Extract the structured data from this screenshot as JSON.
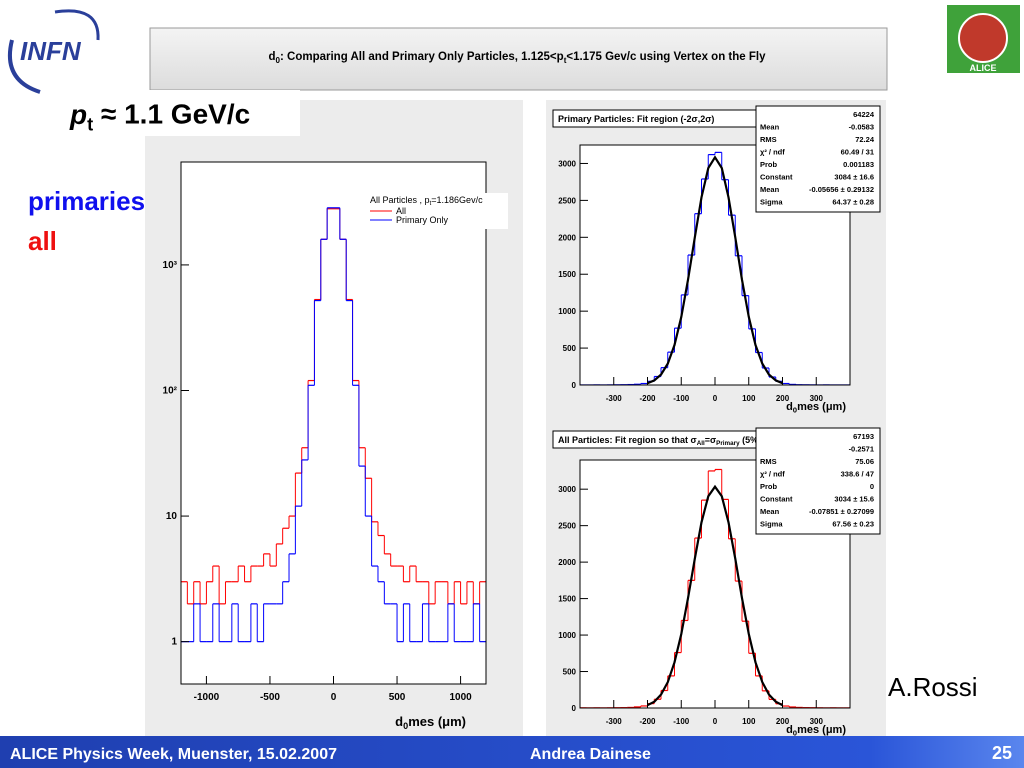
{
  "header": {
    "title": [
      "d",
      "0",
      ": Comparing All and Primary Only Particles, 1.125<p",
      "t",
      "<1.175 Gev/c using Vertex on the Fly"
    ]
  },
  "logos": {
    "left": "INFN",
    "right": "ALICE"
  },
  "labels": {
    "pt": [
      "p",
      "t",
      " ≈ 1.1 GeV/c"
    ],
    "primaries": "primaries",
    "all": "all",
    "author": "A.Rossi"
  },
  "footer": {
    "event": "ALICE Physics Week, Muenster, 15.02.2007",
    "speaker": "Andrea Dainese",
    "page": "25"
  },
  "chart_data": [
    {
      "type": "histogram",
      "log": true,
      "legend_title": [
        "All Particles , p",
        "t",
        "=1.186Gev/c"
      ],
      "xlabel": [
        "d",
        "0",
        "mes (μm)"
      ],
      "xlim": [
        -1200,
        1200
      ],
      "xticks": [
        -1000,
        -500,
        0,
        500,
        1000
      ],
      "ylim": [
        0.46,
        6600
      ],
      "yticks": [
        1,
        10,
        {
          "value": 100,
          "label": "10²"
        },
        {
          "value": 1000,
          "label": "10³"
        }
      ],
      "bins": [
        -1200,
        -1150,
        -1100,
        -1050,
        -1000,
        -950,
        -900,
        -850,
        -800,
        -750,
        -700,
        -650,
        -600,
        -550,
        -500,
        -450,
        -400,
        -350,
        -300,
        -250,
        -200,
        -150,
        -100,
        -50,
        0,
        50,
        100,
        150,
        200,
        250,
        300,
        350,
        400,
        450,
        500,
        550,
        600,
        650,
        700,
        750,
        800,
        850,
        900,
        950,
        1000,
        1050,
        1100,
        1150,
        1200
      ],
      "series": [
        {
          "name": "All",
          "color": "#ff0000",
          "values": [
            3,
            2,
            3,
            2,
            3,
            4,
            2,
            3,
            3,
            4,
            3,
            4,
            4,
            5,
            4,
            6,
            8,
            10,
            22,
            35,
            120,
            530,
            1600,
            2800,
            2800,
            1600,
            530,
            120,
            35,
            20,
            9,
            7,
            5,
            4,
            4,
            3,
            4,
            3,
            3,
            2,
            3,
            3,
            2,
            3,
            2,
            3,
            2,
            3
          ]
        },
        {
          "name": "Primary Only",
          "color": "#0000ff",
          "values": [
            1,
            1,
            2,
            1,
            1,
            2,
            1,
            1,
            2,
            1,
            1,
            2,
            1,
            2,
            2,
            2,
            3,
            5,
            12,
            28,
            110,
            520,
            1600,
            2850,
            2850,
            1600,
            520,
            110,
            25,
            10,
            4,
            3,
            2,
            2,
            1,
            2,
            1,
            1,
            2,
            1,
            1,
            1,
            2,
            1,
            1,
            1,
            2,
            1
          ]
        }
      ]
    },
    {
      "type": "histogram",
      "log": false,
      "title": [
        "Primary Particles: Fit region (-2σ,2σ)"
      ],
      "xlabel": [
        "d",
        "0",
        "mes (μm)"
      ],
      "stats": [
        {
          "value": "64224"
        },
        {
          "label": "Mean",
          "value": "-0.0583"
        },
        {
          "label": "RMS",
          "value": "72.24"
        },
        {
          "label": "χ² / ndf",
          "value": "60.49 / 31"
        },
        {
          "label": "Prob",
          "value": "0.001183"
        },
        {
          "label": "Constant",
          "value": "3084 ± 16.6"
        },
        {
          "label": "Mean",
          "value": "-0.05656 ± 0.29132"
        },
        {
          "label": "Sigma",
          "value": "64.37 ± 0.28"
        }
      ],
      "xlim": [
        -400,
        400
      ],
      "xticks": [
        -300,
        -200,
        -100,
        0,
        100,
        200,
        300
      ],
      "ylim": [
        0,
        3250
      ],
      "yticks": [
        0,
        500,
        1000,
        1500,
        2000,
        2500,
        3000
      ],
      "bins": [
        -400,
        -380,
        -360,
        -340,
        -320,
        -300,
        -280,
        -260,
        -240,
        -220,
        -200,
        -180,
        -160,
        -140,
        -120,
        -100,
        -80,
        -60,
        -40,
        -20,
        0,
        20,
        40,
        60,
        80,
        100,
        120,
        140,
        160,
        180,
        200,
        220,
        240,
        260,
        280,
        300,
        320,
        340,
        360,
        380,
        400
      ],
      "series": [
        {
          "color": "#0000ff",
          "values": [
            1,
            1,
            2,
            1,
            2,
            3,
            4,
            6,
            10,
            20,
            50,
            115,
            235,
            445,
            770,
            1220,
            1760,
            2320,
            2790,
            3120,
            3150,
            2780,
            2300,
            1750,
            1210,
            760,
            440,
            230,
            108,
            50,
            20,
            8,
            4,
            3,
            2,
            1,
            2,
            1,
            1,
            1
          ]
        }
      ],
      "fit": {
        "color": "#000000",
        "x": [
          -200,
          -180,
          -160,
          -140,
          -120,
          -100,
          -80,
          -60,
          -40,
          -20,
          0,
          20,
          40,
          60,
          80,
          100,
          120,
          140,
          160,
          180,
          200
        ],
        "values": [
          25,
          62,
          141,
          290,
          542,
          922,
          1425,
          1998,
          2542,
          2939,
          3084,
          2939,
          2542,
          1998,
          1425,
          922,
          542,
          290,
          141,
          62,
          25
        ]
      }
    },
    {
      "type": "histogram",
      "log": false,
      "title": [
        "All Particles: Fit region so that σ",
        "All",
        "=σ",
        "Primary",
        " (5%)"
      ],
      "xlabel": [
        "d",
        "0",
        "mes (μm)"
      ],
      "stats": [
        {
          "value": "67193"
        },
        {
          "value": "-0.2571"
        },
        {
          "label": "RMS",
          "value": "75.06"
        },
        {
          "label": "χ² / ndf",
          "value": "338.6 / 47"
        },
        {
          "label": "Prob",
          "value": "0"
        },
        {
          "label": "Constant",
          "value": "3034 ± 15.6"
        },
        {
          "label": "Mean",
          "value": "-0.07851 ± 0.27099"
        },
        {
          "label": "Sigma",
          "value": "67.56 ± 0.23"
        }
      ],
      "xlim": [
        -400,
        400
      ],
      "xticks": [
        -300,
        -200,
        -100,
        0,
        100,
        200,
        300
      ],
      "ylim": [
        0,
        3400
      ],
      "yticks": [
        0,
        500,
        1000,
        1500,
        2000,
        2500,
        3000
      ],
      "bins": [
        -400,
        -380,
        -360,
        -340,
        -320,
        -300,
        -280,
        -260,
        -240,
        -220,
        -200,
        -180,
        -160,
        -140,
        -120,
        -100,
        -80,
        -60,
        -40,
        -20,
        0,
        20,
        40,
        60,
        80,
        100,
        120,
        140,
        160,
        180,
        200,
        220,
        240,
        260,
        280,
        300,
        320,
        340,
        360,
        380,
        400
      ],
      "series": [
        {
          "color": "#ff0000",
          "values": [
            3,
            2,
            3,
            2,
            3,
            4,
            5,
            8,
            15,
            28,
            60,
            120,
            240,
            440,
            760,
            1200,
            1750,
            2330,
            2850,
            3250,
            3270,
            2860,
            2320,
            1740,
            1190,
            750,
            440,
            235,
            118,
            58,
            27,
            14,
            8,
            5,
            4,
            3,
            2,
            3,
            2,
            2
          ]
        }
      ],
      "fit": {
        "color": "#000000",
        "x": [
          -200,
          -180,
          -160,
          -140,
          -120,
          -100,
          -80,
          -60,
          -40,
          -20,
          0,
          20,
          40,
          60,
          80,
          100,
          120,
          140,
          160,
          180,
          200
        ],
        "values": [
          38,
          87,
          184,
          355,
          627,
          1015,
          1505,
          2046,
          2546,
          2904,
          3034,
          2904,
          2546,
          2046,
          1505,
          1015,
          627,
          355,
          184,
          87,
          38
        ]
      }
    }
  ]
}
